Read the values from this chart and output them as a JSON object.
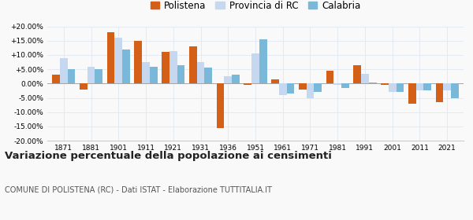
{
  "years": [
    1871,
    1881,
    1901,
    1911,
    1921,
    1931,
    1936,
    1951,
    1961,
    1971,
    1981,
    1991,
    2001,
    2011,
    2021
  ],
  "polistena": [
    3.0,
    -2.0,
    18.0,
    15.0,
    11.0,
    13.0,
    -15.5,
    -0.5,
    1.5,
    -2.0,
    4.5,
    6.5,
    -0.5,
    -7.0,
    -6.5
  ],
  "provincia_rc": [
    9.0,
    6.0,
    16.0,
    7.5,
    11.5,
    7.5,
    2.5,
    10.5,
    -4.0,
    -5.0,
    -0.5,
    3.5,
    -3.0,
    -2.5,
    -2.5
  ],
  "calabria": [
    5.0,
    5.0,
    12.0,
    6.0,
    6.5,
    5.5,
    3.0,
    15.5,
    -3.5,
    -3.0,
    -1.5,
    0.5,
    -3.0,
    -2.5,
    -5.0
  ],
  "color_polistena": "#d45f16",
  "color_provincia": "#c5d8f0",
  "color_calabria": "#7ab8d9",
  "title": "Variazione percentuale della popolazione ai censimenti",
  "subtitle": "COMUNE DI POLISTENA (RC) - Dati ISTAT - Elaborazione TUTTITALIA.IT",
  "ylim": [
    -20,
    20
  ],
  "yticks": [
    -20,
    -15,
    -10,
    -5,
    0,
    5,
    10,
    15,
    20
  ],
  "legend_labels": [
    "Polistena",
    "Provincia di RC",
    "Calabria"
  ],
  "background_color": "#f9f9f9",
  "grid_color": "#e0e8f0"
}
